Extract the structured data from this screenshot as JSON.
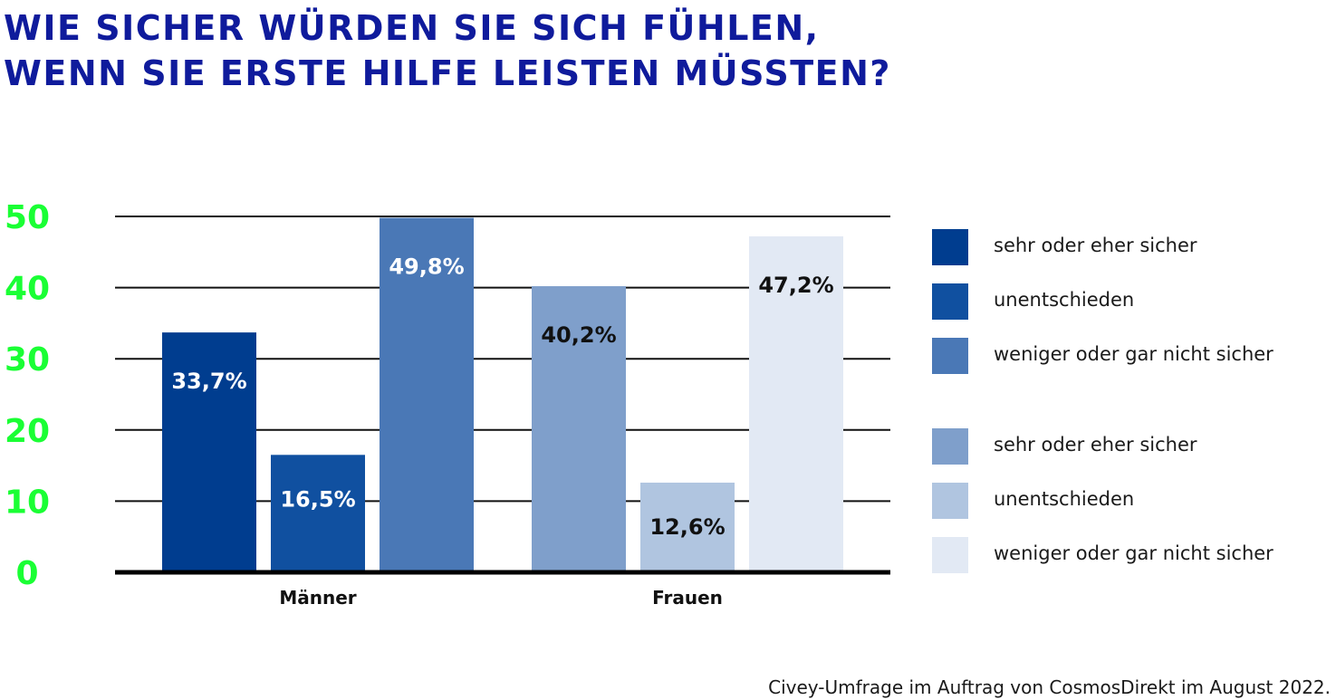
{
  "title": {
    "line1": "WIE SICHER WÜRDEN SIE SICH FÜHLEN,",
    "line2": "WENN SIE ERSTE HILFE LEISTEN MÜSSTEN?"
  },
  "source": "Civey-Umfrage im Auftrag von CosmosDirekt im August 2022.",
  "chart_data": {
    "type": "bar",
    "categories": [
      "Männer",
      "Frauen"
    ],
    "ylim": [
      0,
      50
    ],
    "yticks": [
      0,
      10,
      20,
      30,
      40,
      50
    ],
    "grid": true,
    "legend_position": "right",
    "groups": [
      {
        "category": "Männer",
        "bars": [
          {
            "legend": "sehr oder eher sicher",
            "value": 33.7,
            "label": "33,7%",
            "color": "#003d8f",
            "label_color": "#ffffff"
          },
          {
            "legend": "unentschieden",
            "value": 16.5,
            "label": "16,5%",
            "color": "#1050a0",
            "label_color": "#ffffff"
          },
          {
            "legend": "weniger oder gar nicht sicher",
            "value": 49.8,
            "label": "49,8%",
            "color": "#4a78b6",
            "label_color": "#ffffff"
          }
        ]
      },
      {
        "category": "Frauen",
        "bars": [
          {
            "legend": "sehr oder eher sicher",
            "value": 40.2,
            "label": "40,2%",
            "color": "#7f9fcb",
            "label_color": "#111111"
          },
          {
            "legend": "unentschieden",
            "value": 12.6,
            "label": "12,6%",
            "color": "#b0c5e0",
            "label_color": "#111111"
          },
          {
            "legend": "weniger oder gar nicht sicher",
            "value": 47.2,
            "label": "47,2%",
            "color": "#e2e9f4",
            "label_color": "#111111"
          }
        ]
      }
    ],
    "legend": [
      {
        "label": "sehr oder eher sicher",
        "color": "#003d8f"
      },
      {
        "label": "unentschieden",
        "color": "#1050a0"
      },
      {
        "label": "weniger oder gar nicht sicher",
        "color": "#4a78b6"
      },
      {
        "label": "sehr oder eher sicher",
        "color": "#7f9fcb"
      },
      {
        "label": "unentschieden",
        "color": "#b0c5e0"
      },
      {
        "label": "weniger oder gar nicht sicher",
        "color": "#e2e9f4"
      }
    ]
  }
}
